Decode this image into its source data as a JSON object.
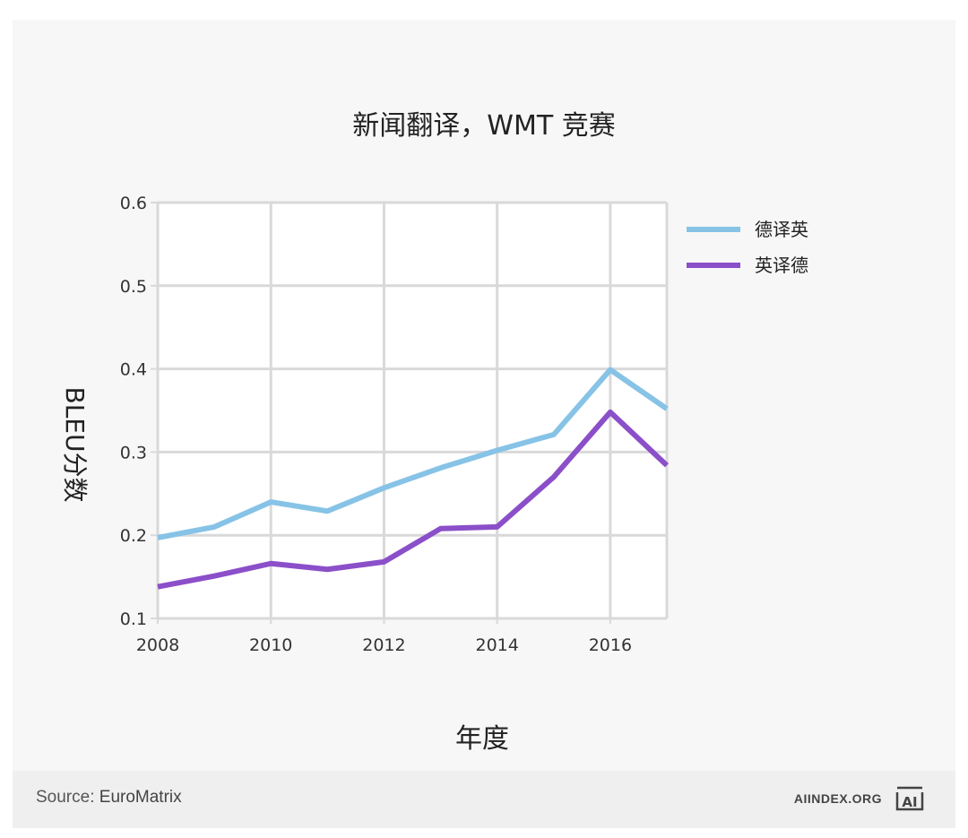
{
  "chart_data": {
    "type": "line",
    "title": "新闻翻译，WMT 竞赛",
    "xlabel": "年度",
    "ylabel": "BLEU分数",
    "x": [
      2008,
      2009,
      2010,
      2011,
      2012,
      2013,
      2014,
      2015,
      2016,
      2017
    ],
    "xlim": [
      2008,
      2017
    ],
    "ylim": [
      0.1,
      0.6
    ],
    "xticks": [
      2008,
      2010,
      2012,
      2014,
      2016
    ],
    "xtick_labels": [
      "2008",
      "2010",
      "2012",
      "2014",
      "2016"
    ],
    "yticks": [
      0.1,
      0.2,
      0.3,
      0.4,
      0.5,
      0.6
    ],
    "ytick_labels": [
      "0.1",
      "0.2",
      "0.3",
      "0.4",
      "0.5",
      "0.6"
    ],
    "grid": true,
    "legend_position": "top-right",
    "series": [
      {
        "name": "德译英",
        "color": "#86c3e6",
        "values": [
          0.197,
          0.21,
          0.24,
          0.229,
          0.257,
          0.281,
          0.302,
          0.321,
          0.399,
          0.352
        ]
      },
      {
        "name": "英译德",
        "color": "#8b4fc9",
        "values": [
          0.138,
          0.151,
          0.166,
          0.159,
          0.168,
          0.208,
          0.21,
          0.27,
          0.348,
          0.284
        ]
      }
    ]
  },
  "footer": {
    "source_prefix": "Source: ",
    "source_name": "EuroMatrix",
    "brand": "AIINDEX.ORG",
    "logo_text": "AI"
  }
}
